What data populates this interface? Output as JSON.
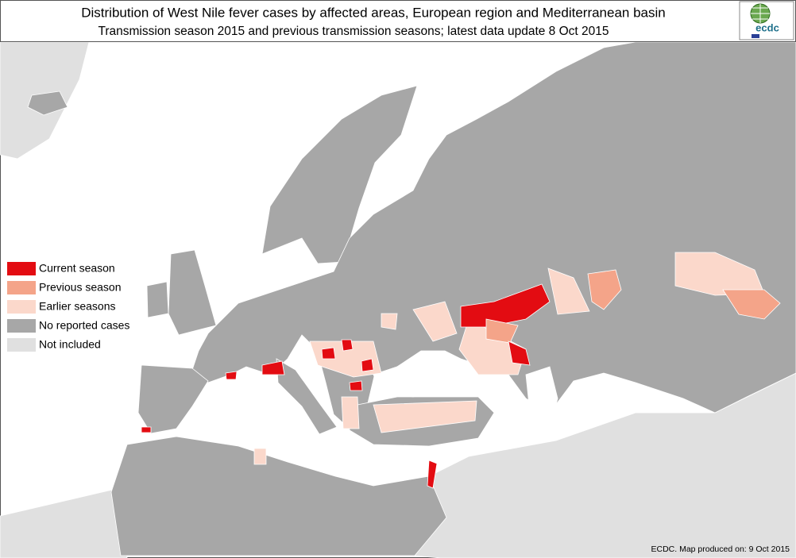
{
  "header": {
    "title": "Distribution of West Nile fever cases by affected areas, European region and Mediterranean basin",
    "subtitle": "Transmission season 2015 and previous transmission seasons; latest data update   8 Oct 2015"
  },
  "logo": {
    "text": "ecdc"
  },
  "legend": {
    "items": [
      {
        "label": "Current season",
        "color": "#e30c12"
      },
      {
        "label": "Previous season",
        "color": "#f4a489"
      },
      {
        "label": "Earlier seasons",
        "color": "#fbd8cb"
      },
      {
        "label": "No reported cases",
        "color": "#a7a7a7"
      },
      {
        "label": "Not included",
        "color": "#e0e0e0"
      }
    ]
  },
  "footer": "ECDC. Map produced on: 9 Oct 2015"
}
